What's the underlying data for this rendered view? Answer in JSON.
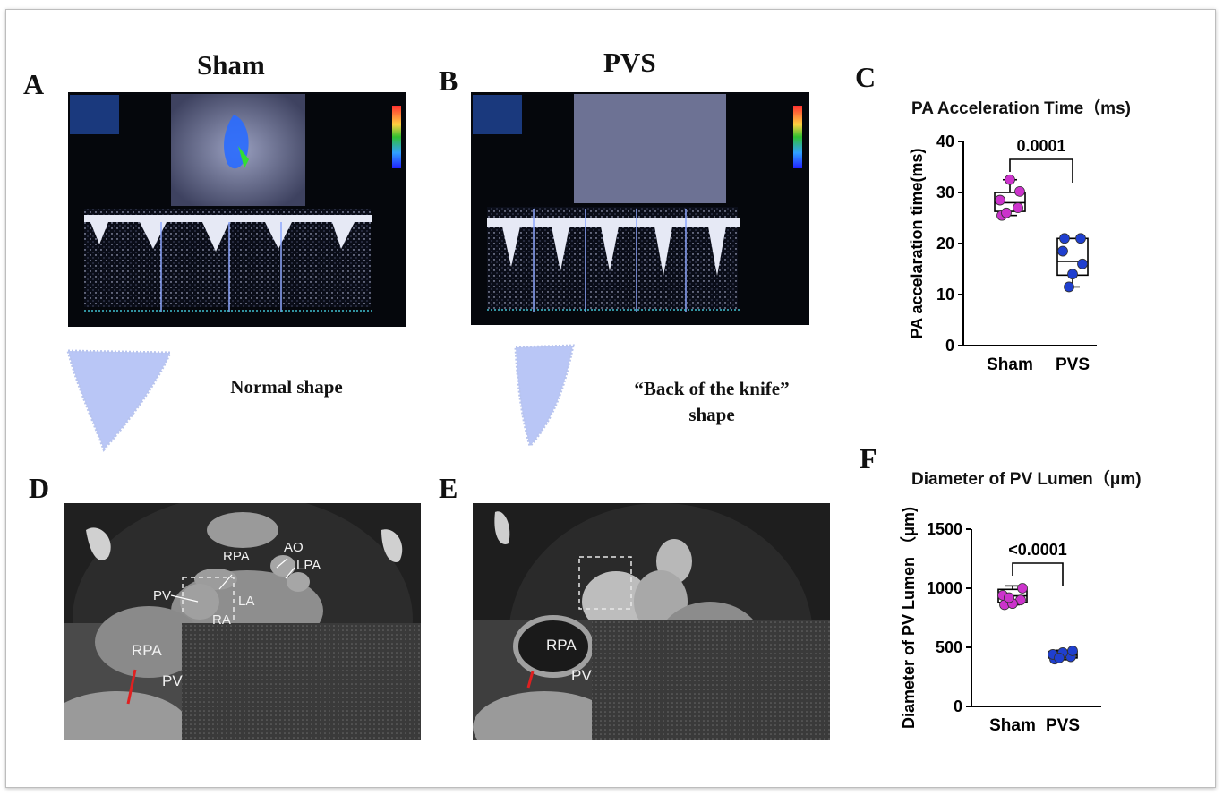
{
  "panels": {
    "A": {
      "label": "A",
      "title": "Sham",
      "caption": "Normal shape"
    },
    "B": {
      "label": "B",
      "title": "PVS",
      "caption_line1": "“Back of the knife”",
      "caption_line2": "shape"
    },
    "C": {
      "label": "C"
    },
    "D": {
      "label": "D",
      "annotations": [
        "RPA",
        "AO",
        "LPA",
        "PV",
        "LA",
        "RA"
      ],
      "inset": [
        "RPA",
        "PV"
      ]
    },
    "E": {
      "label": "E",
      "inset": [
        "RPA",
        "PV"
      ]
    },
    "F": {
      "label": "F"
    }
  },
  "colors": {
    "sham": "#cc33cc",
    "pvs": "#1f3fcf",
    "shape_fill": "#b9c6f6"
  },
  "chart_data": [
    {
      "type": "box",
      "title": "PA Acceleration Time（ms)",
      "ylabel": "PA accelaration time(ms)",
      "categories": [
        "Sham",
        "PVS"
      ],
      "ylim": [
        0,
        40
      ],
      "yticks": [
        "0",
        "10",
        "20",
        "30",
        "40"
      ],
      "pvalue": "0.0001",
      "series": [
        {
          "category": "Sham",
          "points": [
            25.5,
            27.0,
            28.5,
            30.2,
            32.5,
            26.0
          ],
          "box": {
            "min": 25.5,
            "q1": 26.3,
            "median": 28.0,
            "q3": 30.0,
            "max": 32.5
          }
        },
        {
          "category": "PVS",
          "points": [
            21.0,
            21.0,
            18.5,
            16.0,
            14.0,
            11.5
          ],
          "box": {
            "min": 11.5,
            "q1": 13.8,
            "median": 16.5,
            "q3": 21.0,
            "max": 21.0
          }
        }
      ]
    },
    {
      "type": "box",
      "title": "Diameter of PV Lumen（μm)",
      "ylabel": "Diameter of PV Lumen （μm)",
      "categories": [
        "Sham",
        "PVS"
      ],
      "ylim": [
        0,
        1500
      ],
      "yticks": [
        "0",
        "500",
        "1000",
        "1500"
      ],
      "pvalue": "<0.0001",
      "series": [
        {
          "category": "Sham",
          "points": [
            860,
            900,
            940,
            1000,
            870,
            920
          ],
          "box": {
            "min": 860,
            "q1": 880,
            "median": 935,
            "q3": 990,
            "max": 1020
          }
        },
        {
          "category": "PVS",
          "points": [
            400,
            420,
            440,
            470,
            455,
            410
          ],
          "box": {
            "min": 395,
            "q1": 410,
            "median": 435,
            "q3": 465,
            "max": 475
          }
        }
      ]
    }
  ]
}
